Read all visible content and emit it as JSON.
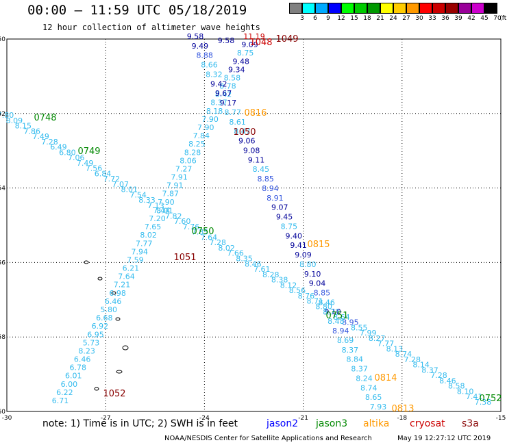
{
  "header": {
    "title": "00:00 – 11:59 UTC 05/18/2019",
    "subtitle": "12 hour collection of altimeter wave heights"
  },
  "scale": {
    "unit_label": "(ft)",
    "bins": [
      {
        "color": "#808080",
        "label": "3"
      },
      {
        "color": "#00ffff",
        "label": "6"
      },
      {
        "color": "#00aaff",
        "label": "9"
      },
      {
        "color": "#0000ff",
        "label": "12"
      },
      {
        "color": "#00ff00",
        "label": "15"
      },
      {
        "color": "#00cc00",
        "label": "18"
      },
      {
        "color": "#009900",
        "label": "21"
      },
      {
        "color": "#ffff00",
        "label": "24"
      },
      {
        "color": "#ffcc00",
        "label": "27"
      },
      {
        "color": "#ff9900",
        "label": "30"
      },
      {
        "color": "#ff0000",
        "label": "33"
      },
      {
        "color": "#cc0000",
        "label": "36"
      },
      {
        "color": "#990000",
        "label": "39"
      },
      {
        "color": "#990099",
        "label": "42"
      },
      {
        "color": "#cc00cc",
        "label": "45"
      },
      {
        "color": "#000000",
        "label": "70"
      }
    ]
  },
  "map": {
    "lon_range": [
      -30,
      -15
    ],
    "lat_range": [
      -60,
      -50
    ],
    "lon_ticks": [
      -30,
      -27,
      -24,
      -21,
      -18,
      -15
    ],
    "lat_ticks": [
      -50,
      -52,
      -54,
      -56,
      -58,
      -60
    ],
    "lon_tick_labels": [
      "-30",
      "-27",
      "-24",
      "-21",
      "-18",
      "-15"
    ],
    "lat_tick_labels": [
      "-50",
      "-52",
      "-54",
      "-56",
      "-58",
      "-60"
    ],
    "colors": {
      "low": "#33bbee",
      "mid": "#3355dd",
      "high": "#000099",
      "jason2": "#0000ff",
      "jason3": "#008800",
      "altika": "#ff9900",
      "cryosat": "#cc0000",
      "s3a": "#880000"
    },
    "tracks": [
      {
        "id": "A",
        "values": [
          "7.80",
          "8.09",
          "8.15",
          "7.86",
          "7.49",
          "7.28",
          "6.49",
          "6.80",
          "7.06",
          "7.49",
          "7.56",
          "6.84",
          "7.72",
          "7.07",
          "8.01",
          "7.54",
          "8.33",
          "7.13",
          "8.01",
          "7.82",
          "7.60",
          "7.76",
          "7.85",
          "7.64",
          "7.28",
          "8.02",
          "7.66",
          "8.35",
          "8.46",
          "7.61",
          "8.28",
          "8.38",
          "8.12",
          "8.56",
          "8.76",
          "8.71",
          "8.80",
          "9.10",
          "8.64",
          "8.95",
          "8.55",
          "7.99",
          "8.27",
          "7.77",
          "8.13",
          "8.74",
          "7.28",
          "8.14",
          "8.37",
          "7.28",
          "8.46",
          "8.58",
          "8.10",
          "7.41",
          "7.38"
        ]
      },
      {
        "id": "B",
        "values": [
          "6.71",
          "6.22",
          "6.00",
          "6.01",
          "6.78",
          "6.46",
          "8.23",
          "5.73",
          "6.95",
          "6.92",
          "6.68",
          "5.80",
          "6.46",
          "6.98",
          "7.21",
          "7.64",
          "6.21",
          "7.59",
          "7.94",
          "7.77",
          "8.02",
          "7.65",
          "7.20",
          "7.44",
          "7.90",
          "7.87",
          "7.91",
          "7.91",
          "7.27",
          "8.06",
          "8.28",
          "8.25",
          "7.84",
          "7.90",
          "7.90",
          "8.18",
          "8.37",
          "8.42",
          "8.78",
          "8.58",
          "9.34",
          "9.48",
          "8.75",
          "9.09",
          "11.19"
        ]
      },
      {
        "id": "C",
        "values": [
          "9.58",
          "9.49",
          "8.88",
          "8.66",
          "8.32",
          "9.42",
          "9.67",
          "9.17",
          "8.77",
          "8.61",
          "8.47",
          "9.06",
          "9.08",
          "9.11",
          "8.45",
          "8.85",
          "8.94",
          "8.91",
          "9.07",
          "9.45",
          "8.75",
          "9.40",
          "9.41",
          "9.09",
          "8.80",
          "9.10",
          "9.04",
          "8.85",
          "8.46",
          "8.73",
          "8.48",
          "8.94",
          "8.69",
          "8.37",
          "8.84",
          "8.37",
          "8.24",
          "8.74",
          "8.65",
          "7.93"
        ]
      },
      {
        "id": "D",
        "values": [
          "9.58"
        ]
      }
    ],
    "time_labels": [
      {
        "text": "0748",
        "sat": "jason3"
      },
      {
        "text": "0749",
        "sat": "jason3"
      },
      {
        "text": "0750",
        "sat": "jason3"
      },
      {
        "text": "0751",
        "sat": "jason3"
      },
      {
        "text": "0752",
        "sat": "jason3"
      },
      {
        "text": "1049",
        "sat": "s3a"
      },
      {
        "text": "1048",
        "sat": "cryosat"
      },
      {
        "text": "1050",
        "sat": "s3a"
      },
      {
        "text": "1051",
        "sat": "s3a"
      },
      {
        "text": "1052",
        "sat": "s3a"
      },
      {
        "text": "0816",
        "sat": "altika"
      },
      {
        "text": "0815",
        "sat": "altika"
      },
      {
        "text": "0814",
        "sat": "altika"
      },
      {
        "text": "0813",
        "sat": "altika"
      }
    ]
  },
  "legend": {
    "note": "note: 1) Time is in UTC; 2) SWH is in feet",
    "jason2": "jason2",
    "jason3": "jason3",
    "altika": "altika",
    "cryosat": "cryosat",
    "s3a": "s3a"
  },
  "footer": {
    "credit": "NOAA/NESDIS Center for Satellite Applications and Research",
    "timestamp": "May 19 12:27:12 UTC 2019"
  }
}
